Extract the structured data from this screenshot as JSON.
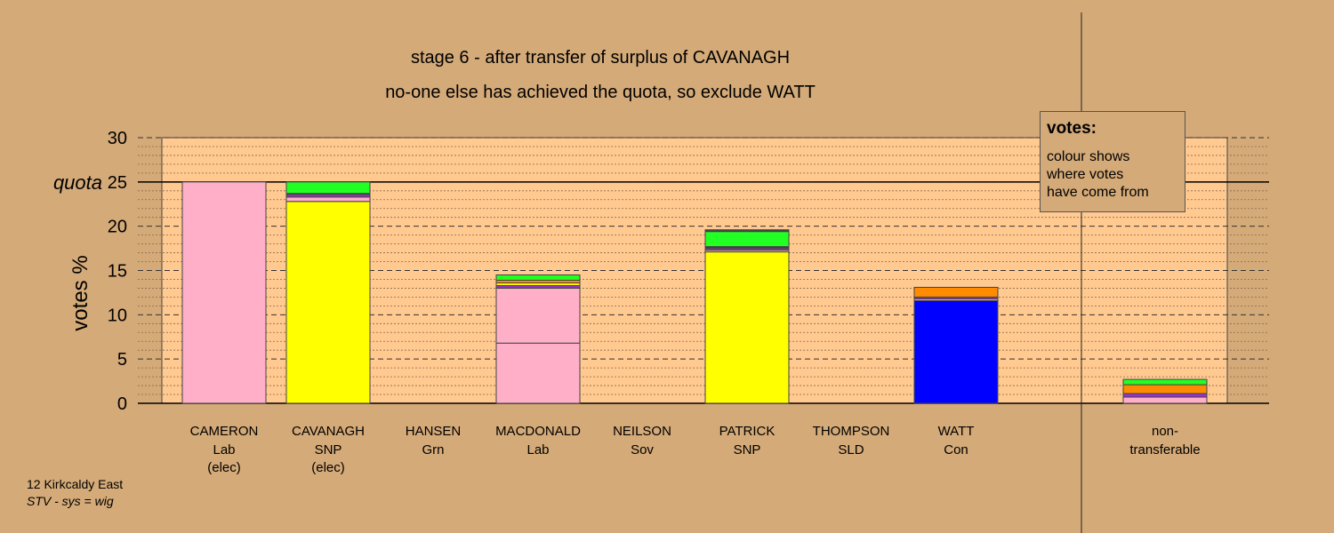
{
  "title": "stage 6 - after transfer of surplus of CAVANAGH",
  "subtitle": "no-one else has achieved the quota, so exclude WATT",
  "legend": {
    "title": "votes:",
    "lines": [
      "colour shows",
      "where votes",
      "have come from"
    ]
  },
  "footer": {
    "ward": "12 Kirkcaldy East",
    "system": "STV - sys = wig"
  },
  "colors": {
    "background": "#d4aa78",
    "plot": "#ffc990",
    "Lab": "#ffb0c8",
    "SNP": "#ffff00",
    "Con": "#0000ff",
    "Grn": "#22ff22",
    "orange": "#ff8c00",
    "purple": "#9933cc",
    "dark": "#444444"
  },
  "chart_data": {
    "type": "bar",
    "stacked": true,
    "ylabel": "votes %",
    "ylim": [
      0,
      30
    ],
    "yticks": [
      0,
      5,
      10,
      15,
      20,
      25,
      30
    ],
    "quota": 25,
    "quota_label": "quota",
    "grid": "minor dotted every 1, major dashed every 5",
    "legend_placement": "top-right",
    "categories": [
      {
        "name": "CAMERON",
        "party": "Lab",
        "note": "(elec)",
        "segments": [
          {
            "value": 25.0,
            "color": "#ffb0c8"
          }
        ]
      },
      {
        "name": "CAVANAGH",
        "party": "SNP",
        "note": "(elec)",
        "segments": [
          {
            "value": 22.8,
            "color": "#ffff00"
          },
          {
            "value": 0.5,
            "color": "#ffb0c8"
          },
          {
            "value": 0.3,
            "color": "#9933cc"
          },
          {
            "value": 0.1,
            "color": "#444444"
          },
          {
            "value": 1.3,
            "color": "#22ff22"
          }
        ]
      },
      {
        "name": "HANSEN",
        "party": "Grn",
        "note": "",
        "segments": []
      },
      {
        "name": "MACDONALD",
        "party": "Lab",
        "note": "",
        "segments": [
          {
            "value": 6.8,
            "color": "#ffb0c8"
          },
          {
            "value": 6.2,
            "color": "#ffb0c8"
          },
          {
            "value": 0.3,
            "color": "#9933cc"
          },
          {
            "value": 0.3,
            "color": "#ffff00"
          },
          {
            "value": 0.3,
            "color": "#ff8c00"
          },
          {
            "value": 0.6,
            "color": "#22ff22"
          }
        ]
      },
      {
        "name": "NEILSON",
        "party": "Sov",
        "note": "",
        "segments": []
      },
      {
        "name": "PATRICK",
        "party": "SNP",
        "note": "",
        "segments": [
          {
            "value": 17.1,
            "color": "#ffff00"
          },
          {
            "value": 0.2,
            "color": "#ffb0c8"
          },
          {
            "value": 0.2,
            "color": "#9933cc"
          },
          {
            "value": 0.2,
            "color": "#444444"
          },
          {
            "value": 1.7,
            "color": "#22ff22"
          },
          {
            "value": 0.2,
            "color": "#444444"
          }
        ]
      },
      {
        "name": "THOMPSON",
        "party": "SLD",
        "note": "",
        "segments": []
      },
      {
        "name": "WATT",
        "party": "Con",
        "note": "",
        "segments": [
          {
            "value": 11.6,
            "color": "#0000ff"
          },
          {
            "value": 0.2,
            "color": "#ffb0c8"
          },
          {
            "value": 0.2,
            "color": "#9933cc"
          },
          {
            "value": 1.1,
            "color": "#ff8c00"
          }
        ]
      }
    ],
    "nontransferable": {
      "line1": "non-",
      "line2": "transferable",
      "segments": [
        {
          "value": 0.7,
          "color": "#ffb0c8"
        },
        {
          "value": 0.4,
          "color": "#9933cc"
        },
        {
          "value": 1.0,
          "color": "#ff8c00"
        },
        {
          "value": 0.6,
          "color": "#22ff22"
        }
      ]
    }
  }
}
